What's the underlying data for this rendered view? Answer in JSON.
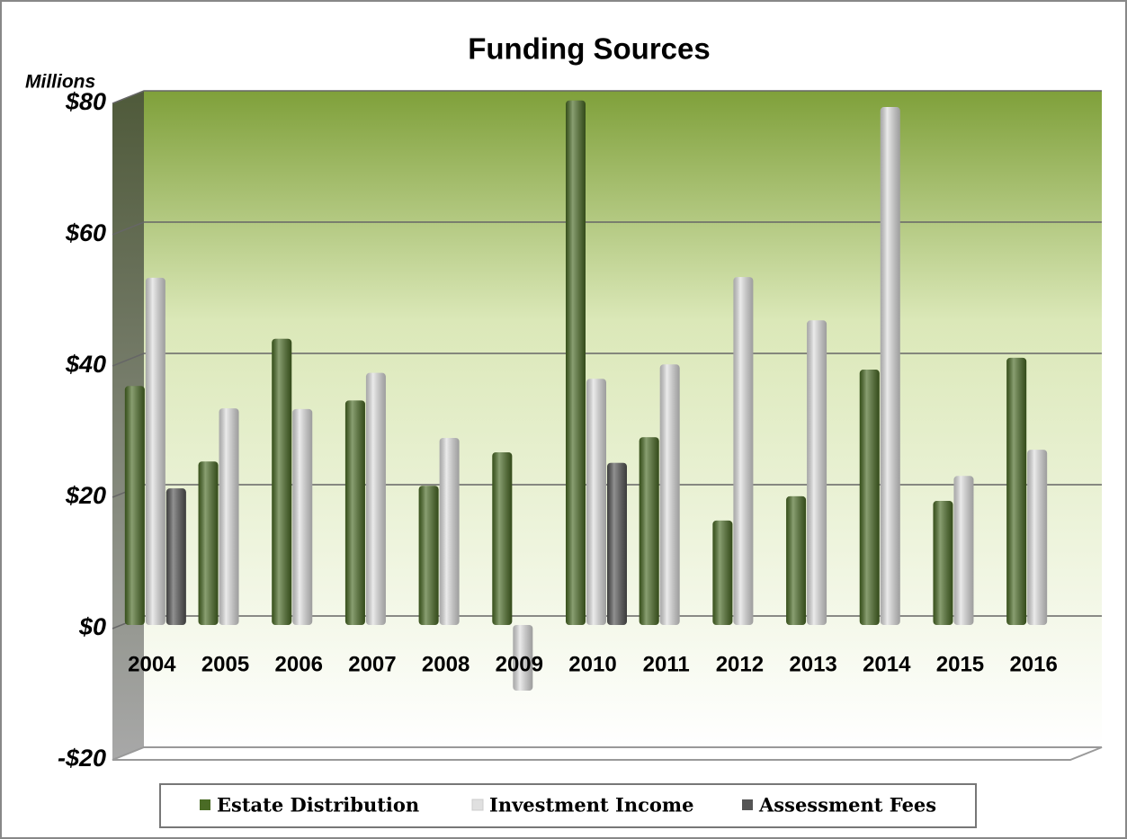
{
  "chart_data": {
    "type": "bar",
    "title": "Funding Sources",
    "y_axis_label": "Millions",
    "categories": [
      "2004",
      "2005",
      "2006",
      "2007",
      "2008",
      "2009",
      "2010",
      "2011",
      "2012",
      "2013",
      "2014",
      "2015",
      "2016"
    ],
    "series": [
      {
        "name": "Estate Distribution",
        "color": "#4a6b25",
        "values": [
          36.4,
          24.9,
          43.6,
          34.2,
          21.2,
          26.3,
          79.9,
          28.6,
          15.9,
          19.6,
          38.9,
          18.9,
          40.7
        ]
      },
      {
        "name": "Investment Income",
        "color": "#e0e0e0",
        "values": [
          52.9,
          33,
          32.9,
          38.4,
          28.5,
          -10,
          37.5,
          39.7,
          53,
          46.4,
          78.9,
          22.7,
          26.7
        ]
      },
      {
        "name": "Assessment Fees",
        "color": "#555555",
        "values": [
          20.8,
          null,
          null,
          null,
          null,
          null,
          24.7,
          null,
          null,
          null,
          null,
          null,
          null
        ]
      }
    ],
    "ylim": [
      -20,
      80
    ],
    "yticks": [
      {
        "value": -20,
        "label": "-$20"
      },
      {
        "value": 0,
        "label": "$0"
      },
      {
        "value": 20,
        "label": "$20"
      },
      {
        "value": 40,
        "label": "$40"
      },
      {
        "value": 60,
        "label": "$60"
      },
      {
        "value": 80,
        "label": "$80"
      }
    ],
    "grid": true,
    "legend": "bottom"
  }
}
